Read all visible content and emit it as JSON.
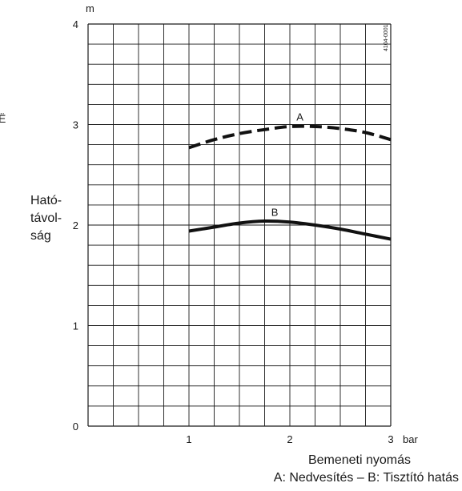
{
  "chart_data": {
    "type": "line",
    "y_unit": "m",
    "x_unit": "bar",
    "ylabel_lines": [
      "Ható-",
      "távol-",
      "ság"
    ],
    "xlabel": "Bemeneti nyomás",
    "caption": "A: Nedvesítés – B: Tisztító hatás",
    "figure_code": "4104-0001",
    "edge_mark": "Ë",
    "xlim": [
      0,
      3
    ],
    "ylim": [
      0,
      4
    ],
    "x_ticks": [
      1,
      2,
      3
    ],
    "y_ticks": [
      0,
      1,
      2,
      3,
      4
    ],
    "x_grid_step": 0.25,
    "y_grid_step": 0.2,
    "series": [
      {
        "name": "A",
        "style": "dashed",
        "x": [
          1.0,
          1.25,
          1.5,
          1.75,
          2.0,
          2.25,
          2.5,
          2.75,
          3.0
        ],
        "y": [
          2.77,
          2.85,
          2.91,
          2.95,
          2.98,
          2.98,
          2.96,
          2.92,
          2.85
        ],
        "label_at": [
          2.1,
          3.04
        ]
      },
      {
        "name": "B",
        "style": "solid",
        "x": [
          1.0,
          1.25,
          1.5,
          1.75,
          2.0,
          2.25,
          2.5,
          2.75,
          3.0
        ],
        "y": [
          1.94,
          1.98,
          2.02,
          2.04,
          2.03,
          2.0,
          1.96,
          1.91,
          1.86
        ],
        "label_at": [
          1.85,
          2.09
        ]
      }
    ]
  }
}
